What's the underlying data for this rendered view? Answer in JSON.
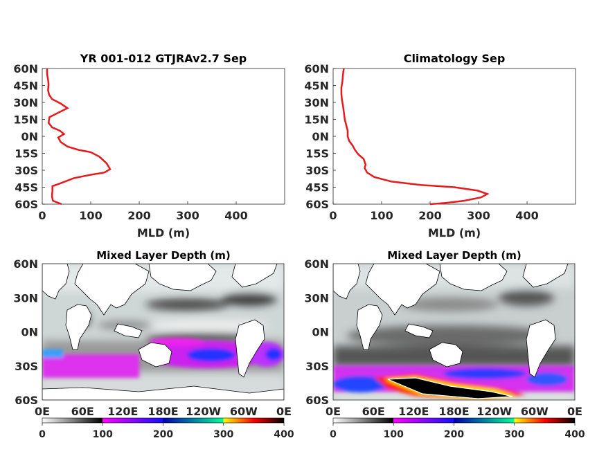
{
  "chart_data": [
    {
      "type": "line",
      "title": "YR 001-012 GTJRAv2.7 Sep",
      "xlabel": "MLD (m)",
      "ylabel": "",
      "xlim": [
        0,
        500
      ],
      "ylim": [
        -60,
        60
      ],
      "xticks": [
        "0",
        "100",
        "200",
        "300",
        "400"
      ],
      "yticks": [
        "60N",
        "45N",
        "30N",
        "15N",
        "0N",
        "15S",
        "30S",
        "45S",
        "60S"
      ],
      "series": [
        {
          "color": "#e41a1c",
          "points": [
            [
              40,
              -60
            ],
            [
              22,
              -57
            ],
            [
              20,
              -53
            ],
            [
              21,
              -48
            ],
            [
              21,
              -44
            ],
            [
              35,
              -42
            ],
            [
              65,
              -37
            ],
            [
              100,
              -34
            ],
            [
              128,
              -32
            ],
            [
              140,
              -29
            ],
            [
              133,
              -24
            ],
            [
              118,
              -18
            ],
            [
              100,
              -14
            ],
            [
              75,
              -12
            ],
            [
              52,
              -9
            ],
            [
              38,
              -5
            ],
            [
              33,
              -1
            ],
            [
              45,
              2
            ],
            [
              36,
              5
            ],
            [
              20,
              8
            ],
            [
              13,
              12
            ],
            [
              15,
              17
            ],
            [
              38,
              22
            ],
            [
              52,
              25
            ],
            [
              38,
              29
            ],
            [
              20,
              33
            ],
            [
              14,
              37
            ],
            [
              12,
              41
            ],
            [
              13,
              46
            ],
            [
              12,
              50
            ],
            [
              10,
              55
            ],
            [
              10,
              60
            ]
          ]
        }
      ]
    },
    {
      "type": "line",
      "title": "Climatology Sep",
      "xlabel": "MLD (m)",
      "ylabel": "",
      "xlim": [
        0,
        500
      ],
      "ylim": [
        -60,
        60
      ],
      "xticks": [
        "0",
        "100",
        "200",
        "300",
        "400"
      ],
      "yticks": [
        "60N",
        "45N",
        "30N",
        "15N",
        "0N",
        "15S",
        "30S",
        "45S",
        "60S"
      ],
      "series": [
        {
          "color": "#e41a1c",
          "points": [
            [
              200,
              -60
            ],
            [
              230,
              -59
            ],
            [
              270,
              -57
            ],
            [
              305,
              -54
            ],
            [
              318,
              -51
            ],
            [
              298,
              -48
            ],
            [
              250,
              -45
            ],
            [
              180,
              -43
            ],
            [
              120,
              -40
            ],
            [
              85,
              -36
            ],
            [
              70,
              -32
            ],
            [
              65,
              -28
            ],
            [
              67,
              -25
            ],
            [
              63,
              -20
            ],
            [
              52,
              -16
            ],
            [
              45,
              -12
            ],
            [
              40,
              -8
            ],
            [
              33,
              -4
            ],
            [
              30,
              0
            ],
            [
              30,
              5
            ],
            [
              27,
              10
            ],
            [
              24,
              15
            ],
            [
              22,
              22
            ],
            [
              20,
              28
            ],
            [
              18,
              33
            ],
            [
              17,
              38
            ],
            [
              17,
              43
            ],
            [
              19,
              48
            ],
            [
              20,
              53
            ],
            [
              21,
              57
            ],
            [
              22,
              60
            ]
          ]
        }
      ]
    },
    {
      "type": "heatmap",
      "title": "Mixed Layer Depth (m)",
      "xticks": [
        "0E",
        "60E",
        "120E",
        "180E",
        "120W",
        "60W",
        "0E"
      ],
      "yticks": [
        "60N",
        "30N",
        "0N",
        "30S",
        "60S"
      ],
      "colorbar_ticks": [
        "0",
        "100",
        "200",
        "300",
        "400"
      ],
      "colorbar_range": [
        0,
        400
      ],
      "colormap": [
        "#ffffff",
        "#000000",
        "#ff00ff",
        "#0000ff",
        "#00ff99",
        "#ffff00",
        "#ff0000",
        "#000000"
      ]
    },
    {
      "type": "heatmap",
      "title": "Mixed Layer Depth (m)",
      "xticks": [
        "0E",
        "60E",
        "120E",
        "180E",
        "120W",
        "60W",
        "0E"
      ],
      "yticks": [
        "60N",
        "30N",
        "0N",
        "30S",
        "60S"
      ],
      "colorbar_ticks": [
        "0",
        "100",
        "200",
        "300",
        "400"
      ],
      "colorbar_range": [
        0,
        400
      ],
      "colormap": [
        "#ffffff",
        "#000000",
        "#ff00ff",
        "#0000ff",
        "#00ff99",
        "#ffff00",
        "#ff0000",
        "#000000"
      ]
    }
  ]
}
